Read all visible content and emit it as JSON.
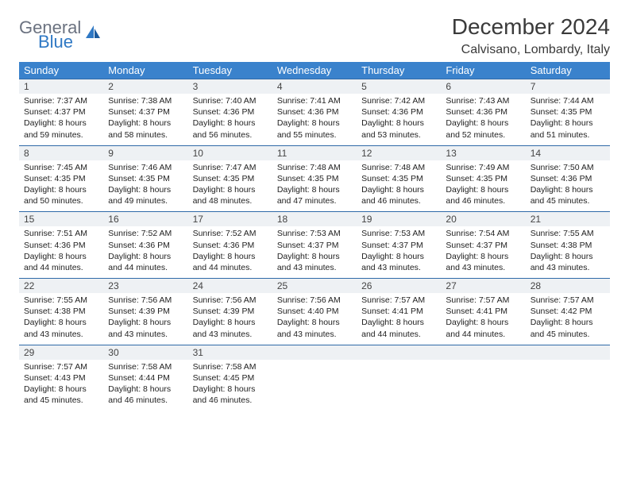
{
  "logo": {
    "line1": "General",
    "line2": "Blue"
  },
  "title": "December 2024",
  "location": "Calvisano, Lombardy, Italy",
  "colors": {
    "header_bg": "#3a82cc",
    "header_text": "#ffffff",
    "daynum_bg": "#eef1f4",
    "border": "#2f6aa8",
    "logo_gray": "#6b7280",
    "logo_blue": "#2f78c4"
  },
  "days_of_week": [
    "Sunday",
    "Monday",
    "Tuesday",
    "Wednesday",
    "Thursday",
    "Friday",
    "Saturday"
  ],
  "weeks": [
    [
      {
        "n": "1",
        "sr": "7:37 AM",
        "ss": "4:37 PM",
        "dl": "8 hours and 59 minutes."
      },
      {
        "n": "2",
        "sr": "7:38 AM",
        "ss": "4:37 PM",
        "dl": "8 hours and 58 minutes."
      },
      {
        "n": "3",
        "sr": "7:40 AM",
        "ss": "4:36 PM",
        "dl": "8 hours and 56 minutes."
      },
      {
        "n": "4",
        "sr": "7:41 AM",
        "ss": "4:36 PM",
        "dl": "8 hours and 55 minutes."
      },
      {
        "n": "5",
        "sr": "7:42 AM",
        "ss": "4:36 PM",
        "dl": "8 hours and 53 minutes."
      },
      {
        "n": "6",
        "sr": "7:43 AM",
        "ss": "4:36 PM",
        "dl": "8 hours and 52 minutes."
      },
      {
        "n": "7",
        "sr": "7:44 AM",
        "ss": "4:35 PM",
        "dl": "8 hours and 51 minutes."
      }
    ],
    [
      {
        "n": "8",
        "sr": "7:45 AM",
        "ss": "4:35 PM",
        "dl": "8 hours and 50 minutes."
      },
      {
        "n": "9",
        "sr": "7:46 AM",
        "ss": "4:35 PM",
        "dl": "8 hours and 49 minutes."
      },
      {
        "n": "10",
        "sr": "7:47 AM",
        "ss": "4:35 PM",
        "dl": "8 hours and 48 minutes."
      },
      {
        "n": "11",
        "sr": "7:48 AM",
        "ss": "4:35 PM",
        "dl": "8 hours and 47 minutes."
      },
      {
        "n": "12",
        "sr": "7:48 AM",
        "ss": "4:35 PM",
        "dl": "8 hours and 46 minutes."
      },
      {
        "n": "13",
        "sr": "7:49 AM",
        "ss": "4:35 PM",
        "dl": "8 hours and 46 minutes."
      },
      {
        "n": "14",
        "sr": "7:50 AM",
        "ss": "4:36 PM",
        "dl": "8 hours and 45 minutes."
      }
    ],
    [
      {
        "n": "15",
        "sr": "7:51 AM",
        "ss": "4:36 PM",
        "dl": "8 hours and 44 minutes."
      },
      {
        "n": "16",
        "sr": "7:52 AM",
        "ss": "4:36 PM",
        "dl": "8 hours and 44 minutes."
      },
      {
        "n": "17",
        "sr": "7:52 AM",
        "ss": "4:36 PM",
        "dl": "8 hours and 44 minutes."
      },
      {
        "n": "18",
        "sr": "7:53 AM",
        "ss": "4:37 PM",
        "dl": "8 hours and 43 minutes."
      },
      {
        "n": "19",
        "sr": "7:53 AM",
        "ss": "4:37 PM",
        "dl": "8 hours and 43 minutes."
      },
      {
        "n": "20",
        "sr": "7:54 AM",
        "ss": "4:37 PM",
        "dl": "8 hours and 43 minutes."
      },
      {
        "n": "21",
        "sr": "7:55 AM",
        "ss": "4:38 PM",
        "dl": "8 hours and 43 minutes."
      }
    ],
    [
      {
        "n": "22",
        "sr": "7:55 AM",
        "ss": "4:38 PM",
        "dl": "8 hours and 43 minutes."
      },
      {
        "n": "23",
        "sr": "7:56 AM",
        "ss": "4:39 PM",
        "dl": "8 hours and 43 minutes."
      },
      {
        "n": "24",
        "sr": "7:56 AM",
        "ss": "4:39 PM",
        "dl": "8 hours and 43 minutes."
      },
      {
        "n": "25",
        "sr": "7:56 AM",
        "ss": "4:40 PM",
        "dl": "8 hours and 43 minutes."
      },
      {
        "n": "26",
        "sr": "7:57 AM",
        "ss": "4:41 PM",
        "dl": "8 hours and 44 minutes."
      },
      {
        "n": "27",
        "sr": "7:57 AM",
        "ss": "4:41 PM",
        "dl": "8 hours and 44 minutes."
      },
      {
        "n": "28",
        "sr": "7:57 AM",
        "ss": "4:42 PM",
        "dl": "8 hours and 45 minutes."
      }
    ],
    [
      {
        "n": "29",
        "sr": "7:57 AM",
        "ss": "4:43 PM",
        "dl": "8 hours and 45 minutes."
      },
      {
        "n": "30",
        "sr": "7:58 AM",
        "ss": "4:44 PM",
        "dl": "8 hours and 46 minutes."
      },
      {
        "n": "31",
        "sr": "7:58 AM",
        "ss": "4:45 PM",
        "dl": "8 hours and 46 minutes."
      },
      null,
      null,
      null,
      null
    ]
  ],
  "labels": {
    "sunrise": "Sunrise:",
    "sunset": "Sunset:",
    "daylight": "Daylight:"
  }
}
